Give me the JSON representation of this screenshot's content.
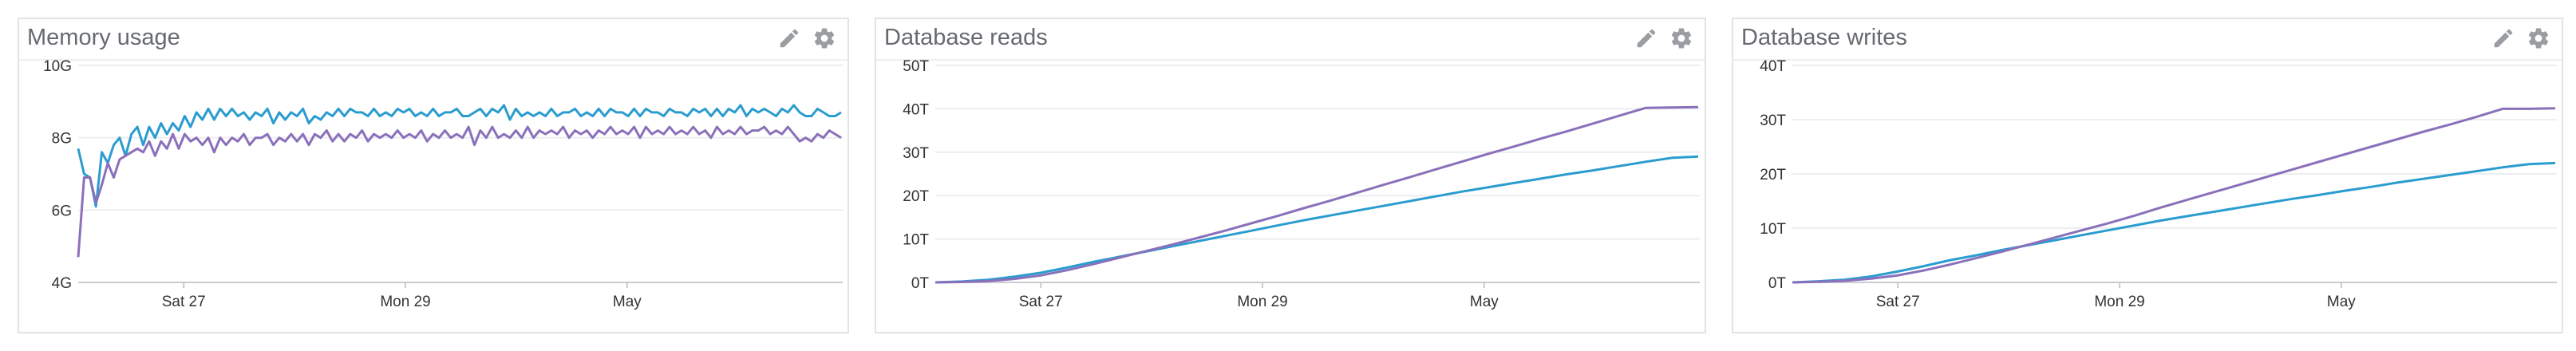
{
  "colors": {
    "blue": "#2a9cd0",
    "purple": "#8a70ba"
  },
  "icons": {
    "edit": "pencil-icon",
    "settings": "gear-icon"
  },
  "chart_data": [
    {
      "type": "line",
      "title": "Memory usage",
      "xlabel": "",
      "ylabel": "",
      "x_ticks": [
        "Sat 27",
        "Mon 29",
        "May"
      ],
      "y_ticks": [
        "4G",
        "6G",
        "8G",
        "10G"
      ],
      "ylim": [
        4,
        10
      ],
      "y_unit": "G (bytes)",
      "grid": true,
      "series": [
        {
          "color": "#2a9cd0",
          "values": [
            7.7,
            7.0,
            6.9,
            6.1,
            7.6,
            7.3,
            7.8,
            8.0,
            7.5,
            8.1,
            8.3,
            7.8,
            8.3,
            8.0,
            8.4,
            8.1,
            8.4,
            8.2,
            8.6,
            8.3,
            8.7,
            8.5,
            8.8,
            8.5,
            8.8,
            8.6,
            8.8,
            8.6,
            8.7,
            8.5,
            8.7,
            8.6,
            8.8,
            8.4,
            8.7,
            8.5,
            8.7,
            8.6,
            8.8,
            8.4,
            8.6,
            8.5,
            8.7,
            8.6,
            8.8,
            8.6,
            8.8,
            8.7,
            8.7,
            8.6,
            8.8,
            8.6,
            8.7,
            8.6,
            8.8,
            8.7,
            8.8,
            8.6,
            8.7,
            8.6,
            8.8,
            8.6,
            8.7,
            8.7,
            8.8,
            8.6,
            8.6,
            8.7,
            8.8,
            8.6,
            8.8,
            8.7,
            8.9,
            8.5,
            8.8,
            8.6,
            8.7,
            8.6,
            8.7,
            8.6,
            8.8,
            8.6,
            8.7,
            8.7,
            8.8,
            8.6,
            8.7,
            8.6,
            8.8,
            8.6,
            8.8,
            8.7,
            8.7,
            8.6,
            8.8,
            8.6,
            8.8,
            8.7,
            8.7,
            8.6,
            8.8,
            8.7,
            8.7,
            8.6,
            8.8,
            8.7,
            8.8,
            8.6,
            8.8,
            8.6,
            8.8,
            8.7,
            8.9,
            8.6,
            8.8,
            8.7,
            8.8,
            8.7,
            8.6,
            8.8,
            8.7,
            8.9,
            8.7,
            8.6,
            8.6,
            8.8,
            8.7,
            8.6,
            8.6,
            8.7
          ]
        },
        {
          "color": "#8a70ba",
          "values": [
            4.7,
            6.9,
            6.9,
            6.2,
            6.7,
            7.3,
            6.9,
            7.4,
            7.5,
            7.6,
            7.7,
            7.6,
            7.9,
            7.5,
            7.9,
            7.7,
            8.1,
            7.7,
            8.1,
            7.9,
            8.0,
            7.8,
            8.0,
            7.6,
            8.0,
            7.8,
            8.0,
            7.9,
            8.1,
            7.8,
            8.0,
            8.0,
            8.1,
            7.8,
            8.0,
            7.9,
            8.1,
            7.9,
            8.1,
            7.8,
            8.1,
            8.0,
            8.2,
            7.9,
            8.1,
            7.9,
            8.1,
            8.0,
            8.2,
            7.9,
            8.1,
            8.0,
            8.1,
            8.0,
            8.2,
            8.0,
            8.1,
            8.0,
            8.2,
            7.9,
            8.1,
            8.0,
            8.2,
            8.0,
            8.1,
            8.0,
            8.3,
            7.8,
            8.2,
            8.0,
            8.3,
            8.0,
            8.1,
            8.0,
            8.2,
            8.0,
            8.3,
            8.0,
            8.2,
            8.1,
            8.2,
            8.1,
            8.3,
            8.0,
            8.2,
            8.1,
            8.2,
            8.0,
            8.2,
            8.1,
            8.3,
            8.1,
            8.2,
            8.1,
            8.3,
            8.0,
            8.3,
            8.1,
            8.2,
            8.1,
            8.3,
            8.1,
            8.2,
            8.1,
            8.3,
            8.1,
            8.2,
            8.0,
            8.3,
            8.1,
            8.2,
            8.1,
            8.3,
            8.1,
            8.2,
            8.2,
            8.3,
            8.1,
            8.2,
            8.1,
            8.3,
            8.1,
            7.9,
            8.0,
            7.9,
            8.1,
            8.0,
            8.2,
            8.1,
            8.0
          ]
        }
      ]
    },
    {
      "type": "line",
      "title": "Database reads",
      "xlabel": "",
      "ylabel": "",
      "x_ticks": [
        "Sat 27",
        "Mon 29",
        "May"
      ],
      "y_ticks": [
        "0T",
        "10T",
        "20T",
        "30T",
        "40T",
        "50T"
      ],
      "ylim": [
        0,
        50
      ],
      "y_unit": "T",
      "grid": true,
      "series": [
        {
          "color": "#2a9cd0",
          "values": [
            0,
            0.2,
            0.6,
            1.3,
            2.2,
            3.4,
            4.7,
            5.9,
            7.1,
            8.3,
            9.5,
            10.7,
            11.9,
            13.1,
            14.3,
            15.4,
            16.5,
            17.6,
            18.7,
            19.8,
            20.9,
            21.9,
            22.9,
            23.9,
            24.9,
            25.8,
            26.8,
            27.8,
            28.7,
            29.0
          ]
        },
        {
          "color": "#8a70ba",
          "values": [
            0,
            0.1,
            0.3,
            0.8,
            1.6,
            2.8,
            4.2,
            5.7,
            7.2,
            8.7,
            10.3,
            11.9,
            13.6,
            15.3,
            17.1,
            18.8,
            20.6,
            22.4,
            24.2,
            26.0,
            27.8,
            29.6,
            31.3,
            33.1,
            34.8,
            36.6,
            38.4,
            40.2,
            40.3,
            40.4
          ]
        }
      ]
    },
    {
      "type": "line",
      "title": "Database writes",
      "xlabel": "",
      "ylabel": "",
      "x_ticks": [
        "Sat 27",
        "Mon 29",
        "May"
      ],
      "y_ticks": [
        "0T",
        "10T",
        "20T",
        "30T",
        "40T"
      ],
      "ylim": [
        0,
        40
      ],
      "y_unit": "T",
      "grid": true,
      "series": [
        {
          "color": "#2a9cd0",
          "values": [
            0,
            0.2,
            0.5,
            1.1,
            2.0,
            3.0,
            4.1,
            5.0,
            6.0,
            6.9,
            7.8,
            8.7,
            9.6,
            10.5,
            11.4,
            12.2,
            13.0,
            13.8,
            14.6,
            15.4,
            16.1,
            16.9,
            17.6,
            18.4,
            19.1,
            19.8,
            20.5,
            21.2,
            21.8,
            22.0
          ]
        },
        {
          "color": "#8a70ba",
          "values": [
            0,
            0.1,
            0.3,
            0.7,
            1.3,
            2.2,
            3.3,
            4.5,
            5.7,
            7.0,
            8.3,
            9.6,
            10.9,
            12.3,
            13.8,
            15.2,
            16.6,
            18.0,
            19.4,
            20.8,
            22.2,
            23.6,
            25.0,
            26.4,
            27.8,
            29.1,
            30.5,
            32.0,
            32.0,
            32.1
          ]
        }
      ]
    }
  ]
}
